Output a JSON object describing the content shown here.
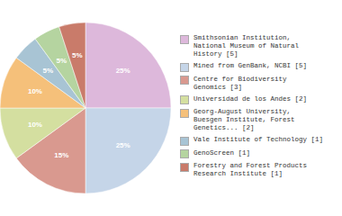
{
  "chart_data": {
    "type": "pie",
    "categories": [
      "Smithsonian Institution,\nNational Museum of Natural\nHistory [5]",
      "Mined from GenBank, NCBI [5]",
      "Centre for Biodiversity\nGenomics [3]",
      "Universidad de los Andes [2]",
      "Georg-August University,\nBuesgen Institute, Forest\nGenetics... [2]",
      "Vale Institute of Technology [1]",
      "GenoScreen [1]",
      "Forestry and Forest Products\nResearch Institute [1]"
    ],
    "values": [
      25,
      25,
      15,
      10,
      10,
      5,
      5,
      5
    ],
    "value_labels": [
      "25%",
      "25%",
      "15%",
      "10%",
      "10%",
      "5%",
      "5%",
      "5%"
    ],
    "data_labels": true,
    "colors": [
      "#ddb8db",
      "#c5d5e8",
      "#d9998f",
      "#d4dfa0",
      "#f5c07a",
      "#a8c4d4",
      "#b5d4a0",
      "#c97b6a"
    ],
    "legend": "right"
  }
}
